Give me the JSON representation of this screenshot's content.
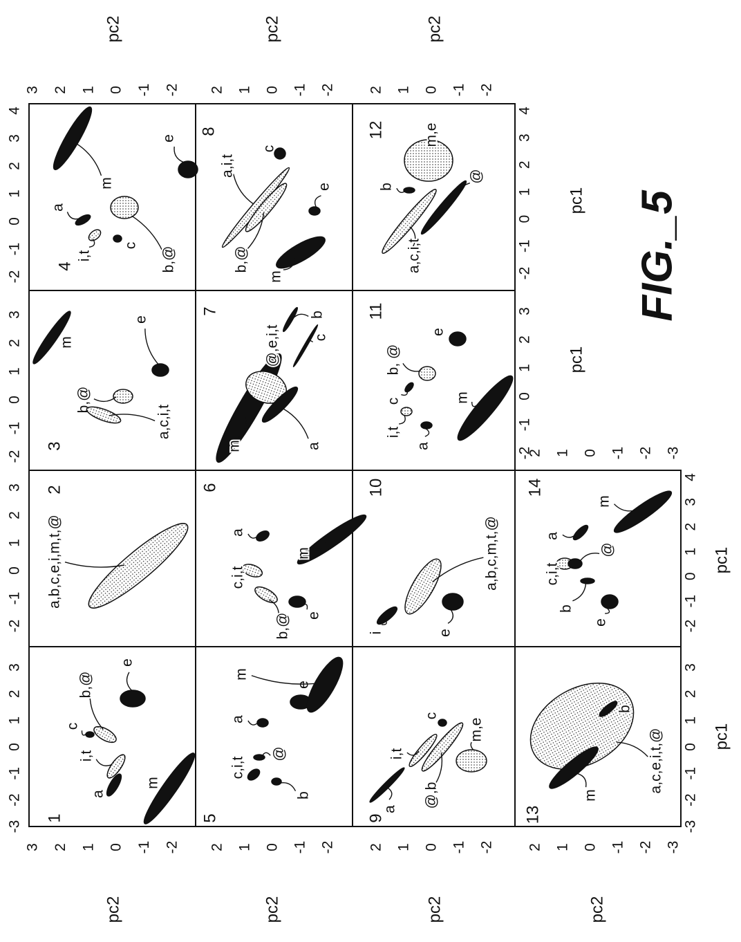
{
  "figure": {
    "label": "FIG._5",
    "x_axis_label": "pc1",
    "y_axis_label": "pc2"
  },
  "panels": [
    {
      "number": "1",
      "clusters": [
        "a",
        "i,t",
        "c",
        "b,@",
        "e",
        "m"
      ]
    },
    {
      "number": "2",
      "clusters": [
        "a,b,c,e,i,m,t,@"
      ]
    },
    {
      "number": "3",
      "clusters": [
        "b,@",
        "a,c,i,t",
        "m",
        "e"
      ]
    },
    {
      "number": "4",
      "clusters": [
        "a",
        "i,t",
        "c",
        "b,@",
        "m",
        "e"
      ]
    },
    {
      "number": "5",
      "clusters": [
        "c,i,t",
        "a",
        "@",
        "b",
        "e",
        "m"
      ]
    },
    {
      "number": "6",
      "clusters": [
        "c,i,t",
        "a",
        "b,@",
        "e",
        "m"
      ]
    },
    {
      "number": "7",
      "clusters": [
        "m",
        "@,e,i,t",
        "a",
        "b",
        "c"
      ]
    },
    {
      "number": "8",
      "clusters": [
        "a,i,t",
        "c",
        "b,@",
        "e",
        "m"
      ]
    },
    {
      "number": "9",
      "clusters": [
        "a",
        "i,t",
        "c",
        "@,b",
        "m,e"
      ]
    },
    {
      "number": "10",
      "clusters": [
        "i",
        "a,b,c,m,t,@",
        "e"
      ]
    },
    {
      "number": "11",
      "clusters": [
        "i,t",
        "c",
        "b, @",
        "a",
        "e",
        "m"
      ]
    },
    {
      "number": "12",
      "clusters": [
        "a,c,i,t",
        "b",
        "m,e",
        "@"
      ]
    },
    {
      "number": "13",
      "clusters": [
        "a,c,e,i,t,@",
        "b",
        "m"
      ]
    },
    {
      "number": "14",
      "clusters": [
        "c,i,t",
        "a",
        "b",
        "@",
        "e",
        "m"
      ]
    }
  ],
  "tick_sets": {
    "pc1_a": [
      "-3",
      "-2",
      "-1",
      "0",
      "1",
      "2",
      "3"
    ],
    "pc1_b": [
      "-2",
      "-1",
      "0",
      "1",
      "2",
      "3",
      "4"
    ],
    "pc1_c": [
      "-2",
      "-1",
      "0",
      "1",
      "2",
      "3"
    ],
    "pc2_a": [
      "3",
      "2",
      "1",
      "0",
      "-1",
      "-2"
    ],
    "pc2_b": [
      "2",
      "1",
      "0",
      "-1",
      "-2"
    ],
    "pc2_c": [
      "2",
      "1",
      "0",
      "-1",
      "-2",
      "-3"
    ]
  }
}
